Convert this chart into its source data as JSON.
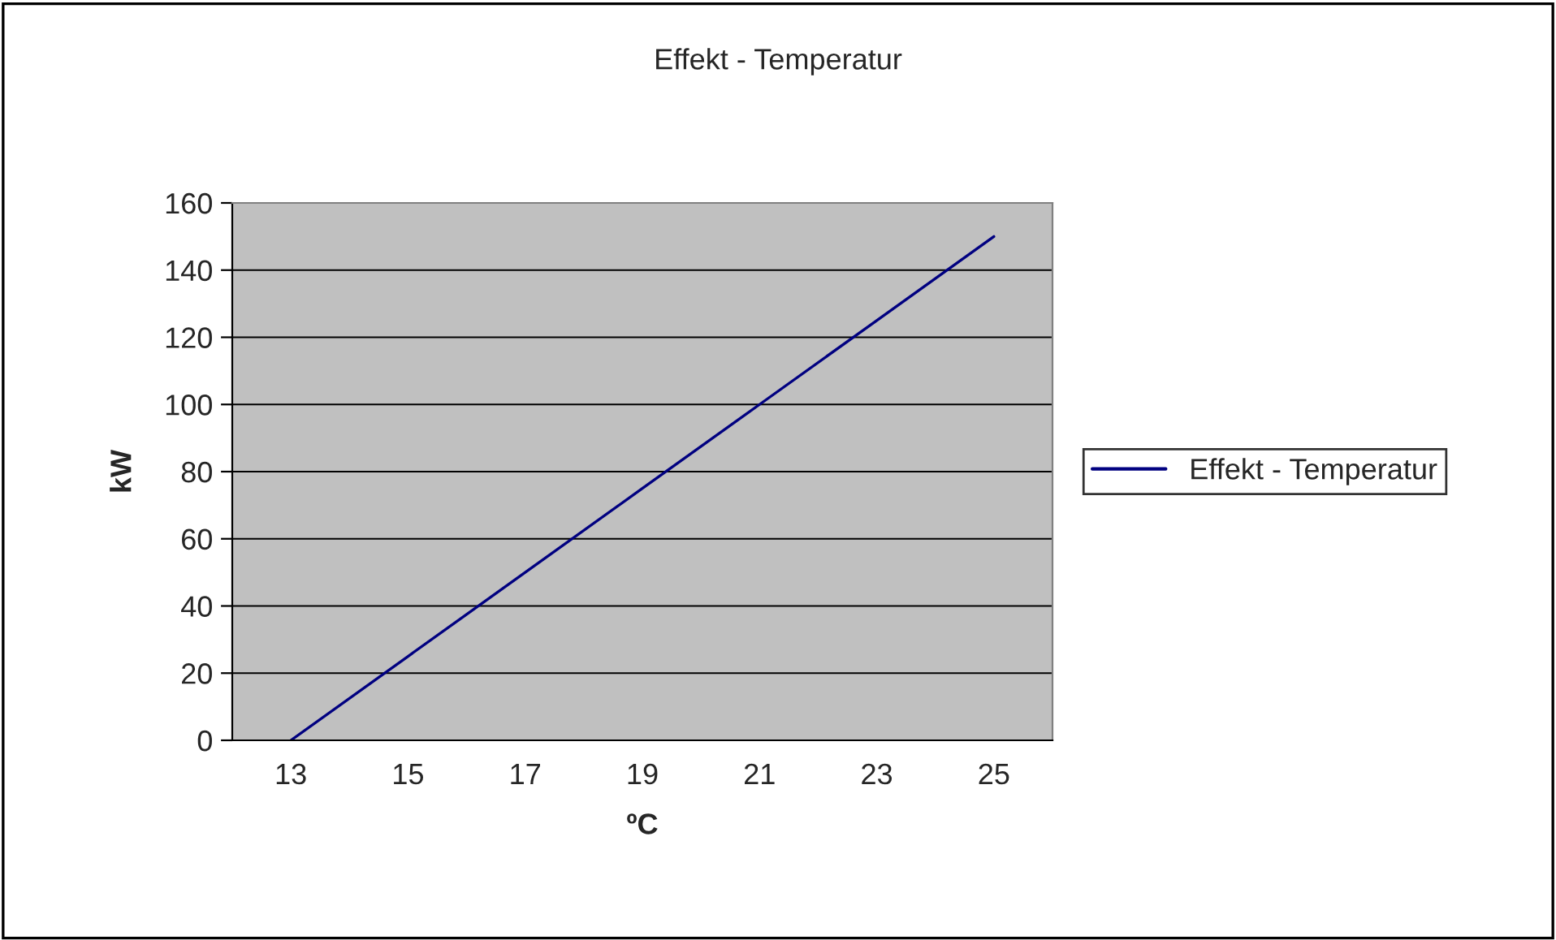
{
  "chart_data": {
    "type": "line",
    "title": "Effekt - Temperatur",
    "xlabel": "ºC",
    "ylabel": "kW",
    "categories": [
      "13",
      "15",
      "17",
      "19",
      "21",
      "23",
      "25"
    ],
    "series": [
      {
        "name": "Effekt - Temperatur",
        "color": "#000080",
        "values": [
          0,
          25,
          50,
          75,
          100,
          125,
          150
        ]
      }
    ],
    "ylim": [
      0,
      160
    ],
    "yticks": [
      0,
      20,
      40,
      60,
      80,
      100,
      120,
      140,
      160
    ],
    "grid": "y",
    "legend": "right",
    "marker": "none",
    "line_style": "solid"
  }
}
